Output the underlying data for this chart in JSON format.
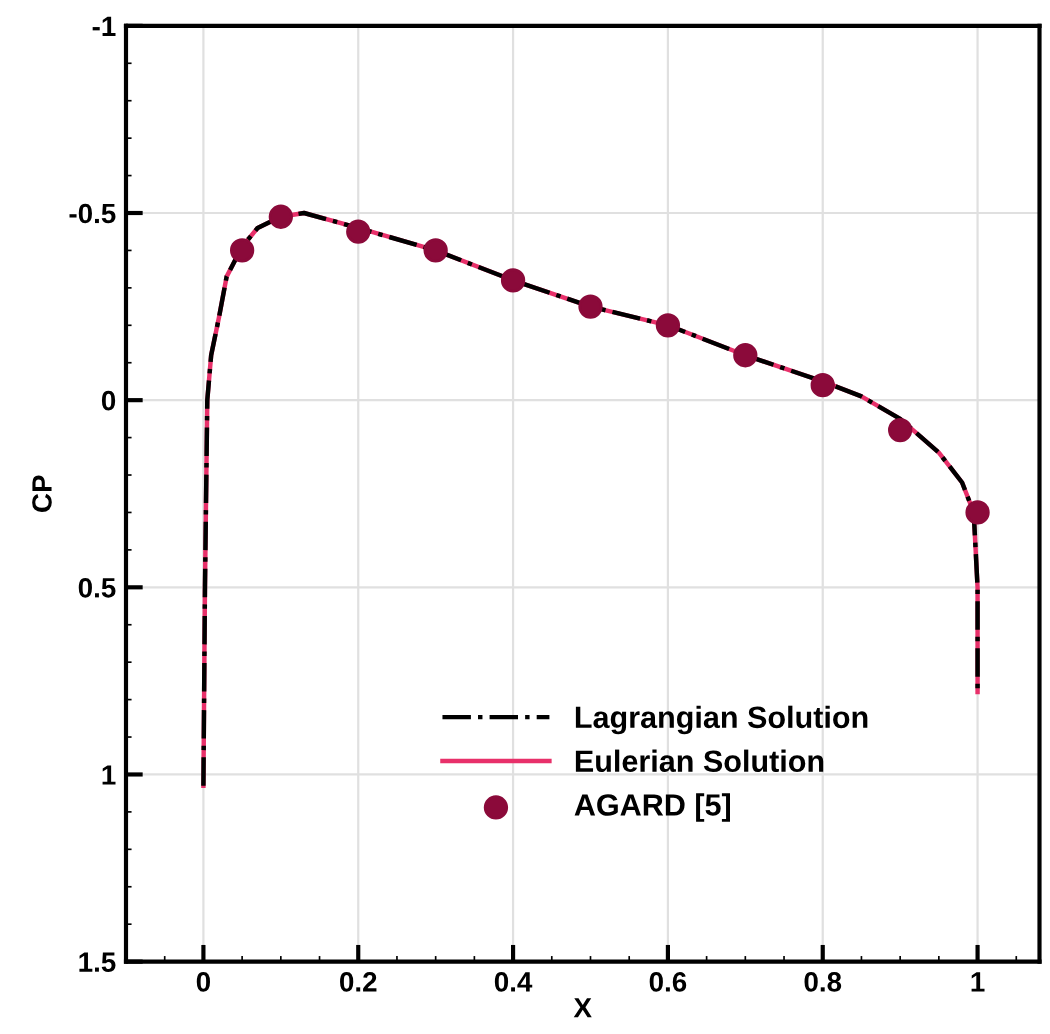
{
  "chart_data": {
    "type": "line",
    "xlabel": "X",
    "ylabel": "CP",
    "xlim": [
      -0.1,
      1.08
    ],
    "xticks": [
      0,
      0.2,
      0.4,
      0.6,
      0.8,
      1
    ],
    "ylim": [
      1.5,
      -1
    ],
    "yticks": [
      {
        "value": -1,
        "label": "-1"
      },
      {
        "value": -0.5,
        "label": "-0.5"
      },
      0,
      0.5,
      1,
      1.5
    ],
    "grid": true,
    "legend": "bottom",
    "series": [
      {
        "name": "Lagrangian Solution",
        "color": "#000000",
        "line_style": "dashdot",
        "marker": "none",
        "x": [
          0,
          0.002,
          0.005,
          0.01,
          0.02,
          0.03,
          0.05,
          0.07,
          0.1,
          0.13,
          0.2,
          0.3,
          0.4,
          0.5,
          0.6,
          0.7,
          0.8,
          0.85,
          0.9,
          0.95,
          0.98,
          0.995,
          1,
          1
        ],
        "values": [
          1.03,
          0.5,
          0.0,
          -0.12,
          -0.22,
          -0.33,
          -0.41,
          -0.46,
          -0.49,
          -0.5,
          -0.46,
          -0.4,
          -0.32,
          -0.25,
          -0.2,
          -0.12,
          -0.05,
          -0.01,
          0.05,
          0.14,
          0.22,
          0.3,
          0.5,
          0.78
        ]
      },
      {
        "name": "Eulerian Solution",
        "color": "#e8306a",
        "line_style": "solid",
        "marker": "none",
        "x": [
          0,
          0.002,
          0.005,
          0.01,
          0.02,
          0.03,
          0.05,
          0.07,
          0.1,
          0.13,
          0.2,
          0.3,
          0.4,
          0.5,
          0.6,
          0.7,
          0.8,
          0.85,
          0.9,
          0.95,
          0.98,
          0.995,
          1,
          1
        ],
        "values": [
          1.03,
          0.5,
          0.0,
          -0.12,
          -0.22,
          -0.33,
          -0.41,
          -0.46,
          -0.49,
          -0.5,
          -0.46,
          -0.4,
          -0.32,
          -0.25,
          -0.2,
          -0.12,
          -0.05,
          -0.01,
          0.05,
          0.14,
          0.22,
          0.3,
          0.5,
          0.78
        ]
      },
      {
        "name": "AGARD [5]",
        "type": "scatter",
        "color": "#8b0a3a",
        "marker": "circle",
        "x": [
          0.05,
          0.1,
          0.2,
          0.3,
          0.4,
          0.5,
          0.6,
          0.7,
          0.8,
          0.9,
          1.0
        ],
        "values": [
          -0.4,
          -0.49,
          -0.45,
          -0.4,
          -0.32,
          -0.25,
          -0.2,
          -0.12,
          -0.04,
          0.08,
          0.3
        ]
      }
    ]
  }
}
